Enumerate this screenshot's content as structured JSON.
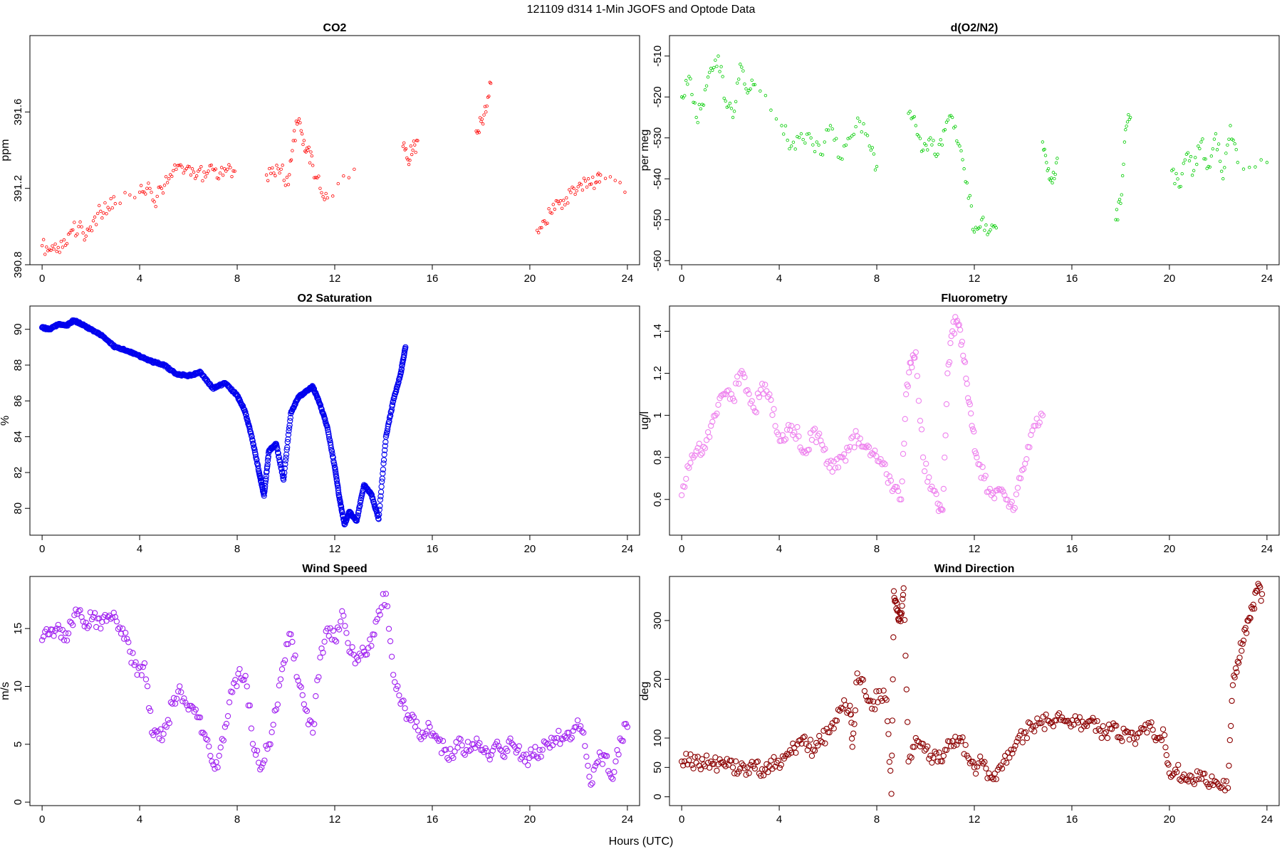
{
  "figure": {
    "title": "121109   d314   1-Min  JGOFS and Optode Data",
    "xlabel": "Hours (UTC)"
  },
  "chart_data": [
    {
      "type": "scatter",
      "title": "CO2",
      "ylabel": "ppm",
      "color": "#ff0000",
      "marker_size": "small",
      "xlim": [
        -0.5,
        24.5
      ],
      "ylim": [
        390.8,
        392.0
      ],
      "x_ticks": [
        0,
        4,
        8,
        12,
        16,
        20,
        24
      ],
      "y_ticks": [
        390.8,
        391.2,
        391.6
      ],
      "series": [
        {
          "x": [
            0.0,
            0.3,
            0.6,
            0.9,
            1.2,
            1.5,
            1.8,
            2.1,
            2.4,
            2.7,
            3.0,
            4.0,
            4.3,
            4.6,
            4.9,
            5.2,
            5.5,
            5.8,
            6.1,
            6.4,
            6.7,
            7.0,
            7.3,
            7.6,
            7.9,
            9.2,
            9.5,
            9.8,
            10.1,
            10.3,
            10.5,
            10.7,
            10.9,
            11.1,
            11.4,
            11.7,
            12.8,
            14.8,
            15.0,
            15.2,
            15.4,
            17.8,
            18.0,
            18.2,
            18.4,
            20.3,
            20.6,
            20.9,
            21.2,
            21.5,
            21.8,
            22.1,
            22.4,
            22.7,
            22.9,
            23.9
          ],
          "y": [
            390.9,
            390.88,
            390.87,
            390.93,
            390.98,
            391.0,
            390.95,
            391.03,
            391.08,
            391.1,
            391.12,
            391.18,
            391.2,
            391.13,
            391.2,
            391.25,
            391.3,
            391.28,
            391.27,
            391.29,
            391.26,
            391.3,
            391.28,
            391.3,
            391.29,
            391.27,
            391.28,
            391.3,
            391.22,
            391.45,
            391.55,
            391.43,
            391.4,
            391.32,
            391.2,
            391.15,
            391.3,
            391.42,
            391.35,
            391.4,
            391.45,
            391.5,
            391.55,
            391.6,
            391.75,
            390.98,
            391.03,
            391.07,
            391.12,
            391.15,
            391.2,
            391.22,
            391.25,
            391.23,
            391.27,
            391.18
          ]
        }
      ]
    },
    {
      "type": "scatter",
      "title": "d(O2/N2)",
      "ylabel": "per meg",
      "color": "#00cc00",
      "marker_size": "small",
      "xlim": [
        -0.5,
        24.5
      ],
      "ylim": [
        -561,
        -505
      ],
      "x_ticks": [
        0,
        4,
        8,
        12,
        16,
        20,
        24
      ],
      "y_ticks": [
        -510,
        -520,
        -530,
        -540,
        -550,
        -560
      ],
      "series": [
        {
          "x": [
            0.0,
            0.3,
            0.6,
            0.9,
            1.2,
            1.5,
            1.8,
            2.1,
            2.4,
            2.7,
            3.0,
            4.1,
            4.5,
            4.9,
            5.3,
            5.7,
            6.1,
            6.5,
            6.9,
            7.3,
            7.7,
            8.0,
            9.3,
            9.6,
            9.9,
            10.2,
            10.5,
            10.8,
            11.1,
            11.4,
            11.7,
            12.0,
            12.3,
            12.6,
            12.9,
            14.8,
            15.0,
            15.2,
            15.4,
            17.8,
            18.0,
            18.2,
            18.4,
            20.1,
            20.4,
            20.7,
            21.0,
            21.3,
            21.6,
            21.9,
            22.2,
            22.5,
            22.8,
            24.0
          ],
          "y": [
            -520,
            -515,
            -525,
            -522,
            -513,
            -510,
            -521,
            -525,
            -512,
            -519,
            -517,
            -527,
            -532,
            -529,
            -530,
            -534,
            -527,
            -535,
            -530,
            -526,
            -532,
            -537,
            -524,
            -527,
            -533,
            -530,
            -534,
            -528,
            -525,
            -532,
            -541,
            -553,
            -550,
            -553,
            -552,
            -531,
            -538,
            -541,
            -535,
            -550,
            -546,
            -528,
            -525,
            -538,
            -542,
            -534,
            -538,
            -531,
            -537,
            -529,
            -540,
            -527,
            -536,
            -536
          ]
        }
      ]
    },
    {
      "type": "scatter",
      "title": "O2 Saturation",
      "ylabel": "%",
      "color": "#0000ee",
      "marker_size": "large",
      "dense": true,
      "xlim": [
        -0.5,
        24.5
      ],
      "ylim": [
        78.5,
        91.3
      ],
      "x_ticks": [
        0,
        4,
        8,
        12,
        16,
        20,
        24
      ],
      "y_ticks": [
        80,
        82,
        84,
        86,
        88,
        90
      ],
      "series": [
        {
          "x": [
            0.0,
            0.3,
            0.7,
            1.0,
            1.3,
            1.6,
            2.0,
            2.5,
            3.0,
            3.5,
            4.0,
            4.5,
            5.0,
            5.5,
            6.0,
            6.5,
            7.0,
            7.5,
            8.0,
            8.3,
            8.6,
            8.9,
            9.1,
            9.3,
            9.6,
            9.9,
            10.2,
            10.5,
            10.8,
            11.1,
            11.4,
            11.7,
            12.0,
            12.2,
            12.4,
            12.6,
            12.9,
            13.2,
            13.5,
            13.8,
            14.1,
            14.4,
            14.7,
            14.9
          ],
          "y": [
            90.1,
            90.0,
            90.3,
            90.2,
            90.5,
            90.3,
            90.0,
            89.6,
            89.0,
            88.8,
            88.5,
            88.2,
            88.0,
            87.5,
            87.4,
            87.6,
            86.7,
            87.0,
            86.3,
            85.5,
            84.0,
            82.0,
            80.7,
            83.2,
            83.6,
            81.6,
            85.3,
            86.2,
            86.5,
            86.8,
            85.8,
            84.5,
            82.3,
            80.5,
            79.1,
            79.8,
            79.3,
            81.3,
            80.8,
            79.4,
            84.0,
            86.0,
            87.5,
            89.0
          ]
        }
      ]
    },
    {
      "type": "scatter",
      "title": "Fluorometry",
      "ylabel": "ug/l",
      "color": "#ee82ee",
      "marker_size": "large",
      "xlim": [
        -0.5,
        24.5
      ],
      "ylim": [
        0.43,
        1.52
      ],
      "x_ticks": [
        0,
        4,
        8,
        12,
        16,
        20,
        24
      ],
      "y_ticks": [
        0.6,
        0.8,
        1.0,
        1.2,
        1.4
      ],
      "series": [
        {
          "x": [
            0.0,
            0.3,
            0.6,
            0.9,
            1.2,
            1.5,
            1.8,
            2.1,
            2.4,
            2.7,
            3.0,
            3.3,
            3.6,
            3.9,
            4.2,
            4.5,
            4.8,
            5.1,
            5.4,
            5.7,
            6.0,
            6.3,
            6.6,
            6.9,
            7.2,
            7.5,
            7.8,
            8.1,
            8.4,
            8.7,
            9.0,
            9.2,
            9.4,
            9.6,
            9.9,
            10.2,
            10.5,
            10.7,
            10.9,
            11.1,
            11.3,
            11.5,
            11.7,
            11.9,
            12.1,
            12.4,
            12.7,
            13.0,
            13.3,
            13.6,
            13.9,
            14.2,
            14.5,
            14.8
          ],
          "y": [
            0.62,
            0.75,
            0.83,
            0.85,
            0.95,
            1.05,
            1.1,
            1.08,
            1.2,
            1.12,
            1.02,
            1.15,
            1.1,
            0.92,
            0.88,
            0.95,
            0.9,
            0.82,
            0.93,
            0.88,
            0.78,
            0.75,
            0.8,
            0.85,
            0.9,
            0.85,
            0.82,
            0.78,
            0.72,
            0.65,
            0.6,
            1.1,
            1.25,
            1.3,
            0.8,
            0.65,
            0.58,
            0.55,
            1.2,
            1.4,
            1.45,
            1.35,
            1.15,
            0.95,
            0.8,
            0.7,
            0.62,
            0.65,
            0.6,
            0.55,
            0.7,
            0.85,
            0.95,
            1.0
          ]
        }
      ]
    },
    {
      "type": "scatter",
      "title": "Wind Speed",
      "ylabel": "m/s",
      "color": "#a020f0",
      "marker_size": "large",
      "xlim": [
        -0.5,
        24.5
      ],
      "ylim": [
        -0.3,
        19.5
      ],
      "x_ticks": [
        0,
        4,
        8,
        12,
        16,
        20,
        24
      ],
      "y_ticks": [
        0,
        5,
        10,
        15
      ],
      "series": [
        {
          "x": [
            0.0,
            0.3,
            0.6,
            0.9,
            1.2,
            1.5,
            1.8,
            2.1,
            2.4,
            2.7,
            3.0,
            3.3,
            3.6,
            3.9,
            4.2,
            4.5,
            4.8,
            5.1,
            5.4,
            5.7,
            6.0,
            6.3,
            6.6,
            6.9,
            7.2,
            7.5,
            7.8,
            8.1,
            8.4,
            8.7,
            9.0,
            9.3,
            9.6,
            9.9,
            10.2,
            10.5,
            10.8,
            11.1,
            11.4,
            11.7,
            12.0,
            12.3,
            12.6,
            12.9,
            13.2,
            13.5,
            13.8,
            14.1,
            14.4,
            14.7,
            15.0,
            15.3,
            15.6,
            15.9,
            16.2,
            16.5,
            16.8,
            17.1,
            17.4,
            17.7,
            18.0,
            18.3,
            18.6,
            18.9,
            19.2,
            19.5,
            19.8,
            20.1,
            20.4,
            20.7,
            21.0,
            21.3,
            21.6,
            21.9,
            22.2,
            22.5,
            22.8,
            23.1,
            23.4,
            23.7,
            24.0
          ],
          "y": [
            14.0,
            14.5,
            15.0,
            14.0,
            15.5,
            16.5,
            15.5,
            16.0,
            15.0,
            16.0,
            16.0,
            15.0,
            13.0,
            11.0,
            12.0,
            6.0,
            5.5,
            6.5,
            9.0,
            9.5,
            8.0,
            8.0,
            6.0,
            4.0,
            3.0,
            6.5,
            9.5,
            11.5,
            10.0,
            4.5,
            3.0,
            5.0,
            8.0,
            12.0,
            14.5,
            10.5,
            8.0,
            6.0,
            12.5,
            15.0,
            14.0,
            16.5,
            13.0,
            12.5,
            13.0,
            13.5,
            16.5,
            18.0,
            11.0,
            8.5,
            7.5,
            6.5,
            6.0,
            6.5,
            5.5,
            4.5,
            4.0,
            5.5,
            4.5,
            5.0,
            4.5,
            4.0,
            5.0,
            4.0,
            5.5,
            4.5,
            3.5,
            4.0,
            4.5,
            5.0,
            5.5,
            5.5,
            6.0,
            6.5,
            6.0,
            1.5,
            3.5,
            4.0,
            2.0,
            5.5,
            6.5
          ]
        }
      ]
    },
    {
      "type": "scatter",
      "title": "Wind Direction",
      "ylabel": "deg",
      "color": "#8b0000",
      "marker_size": "large",
      "xlim": [
        -0.5,
        24.5
      ],
      "ylim": [
        -15,
        375
      ],
      "x_ticks": [
        0,
        4,
        8,
        12,
        16,
        20,
        24
      ],
      "y_ticks": [
        0,
        50,
        100,
        200,
        300
      ],
      "series": [
        {
          "x": [
            0.0,
            0.3,
            0.6,
            0.9,
            1.2,
            1.5,
            1.8,
            2.1,
            2.4,
            2.7,
            3.0,
            3.3,
            3.6,
            3.9,
            4.2,
            4.5,
            4.8,
            5.1,
            5.4,
            5.7,
            6.0,
            6.3,
            6.6,
            6.9,
            7.0,
            7.2,
            7.5,
            7.8,
            8.1,
            8.4,
            8.6,
            8.7,
            8.8,
            8.9,
            9.0,
            9.1,
            9.3,
            9.6,
            9.9,
            10.2,
            10.5,
            10.8,
            11.1,
            11.4,
            11.7,
            12.0,
            12.3,
            12.6,
            12.9,
            13.2,
            13.5,
            13.8,
            14.1,
            14.4,
            14.7,
            15.0,
            15.3,
            15.6,
            15.9,
            16.2,
            16.5,
            16.8,
            17.1,
            17.4,
            17.7,
            18.0,
            18.3,
            18.6,
            18.9,
            19.2,
            19.5,
            19.8,
            20.0,
            20.3,
            20.6,
            20.9,
            21.2,
            21.5,
            21.8,
            22.1,
            22.4,
            22.6,
            22.8,
            23.0,
            23.2,
            23.4,
            23.6,
            23.8
          ],
          "y": [
            60,
            62,
            58,
            55,
            60,
            55,
            52,
            50,
            48,
            50,
            48,
            47,
            52,
            58,
            65,
            75,
            95,
            90,
            80,
            95,
            110,
            130,
            150,
            155,
            85,
            210,
            180,
            150,
            180,
            165,
            5,
            350,
            320,
            300,
            310,
            355,
            60,
            100,
            90,
            70,
            60,
            80,
            95,
            100,
            70,
            50,
            60,
            40,
            30,
            60,
            80,
            100,
            110,
            120,
            125,
            130,
            130,
            135,
            125,
            130,
            120,
            130,
            115,
            110,
            125,
            100,
            110,
            90,
            115,
            120,
            100,
            105,
            40,
            42,
            38,
            35,
            30,
            25,
            20,
            15,
            15,
            190,
            230,
            260,
            300,
            320,
            350,
            345
          ]
        }
      ]
    }
  ]
}
